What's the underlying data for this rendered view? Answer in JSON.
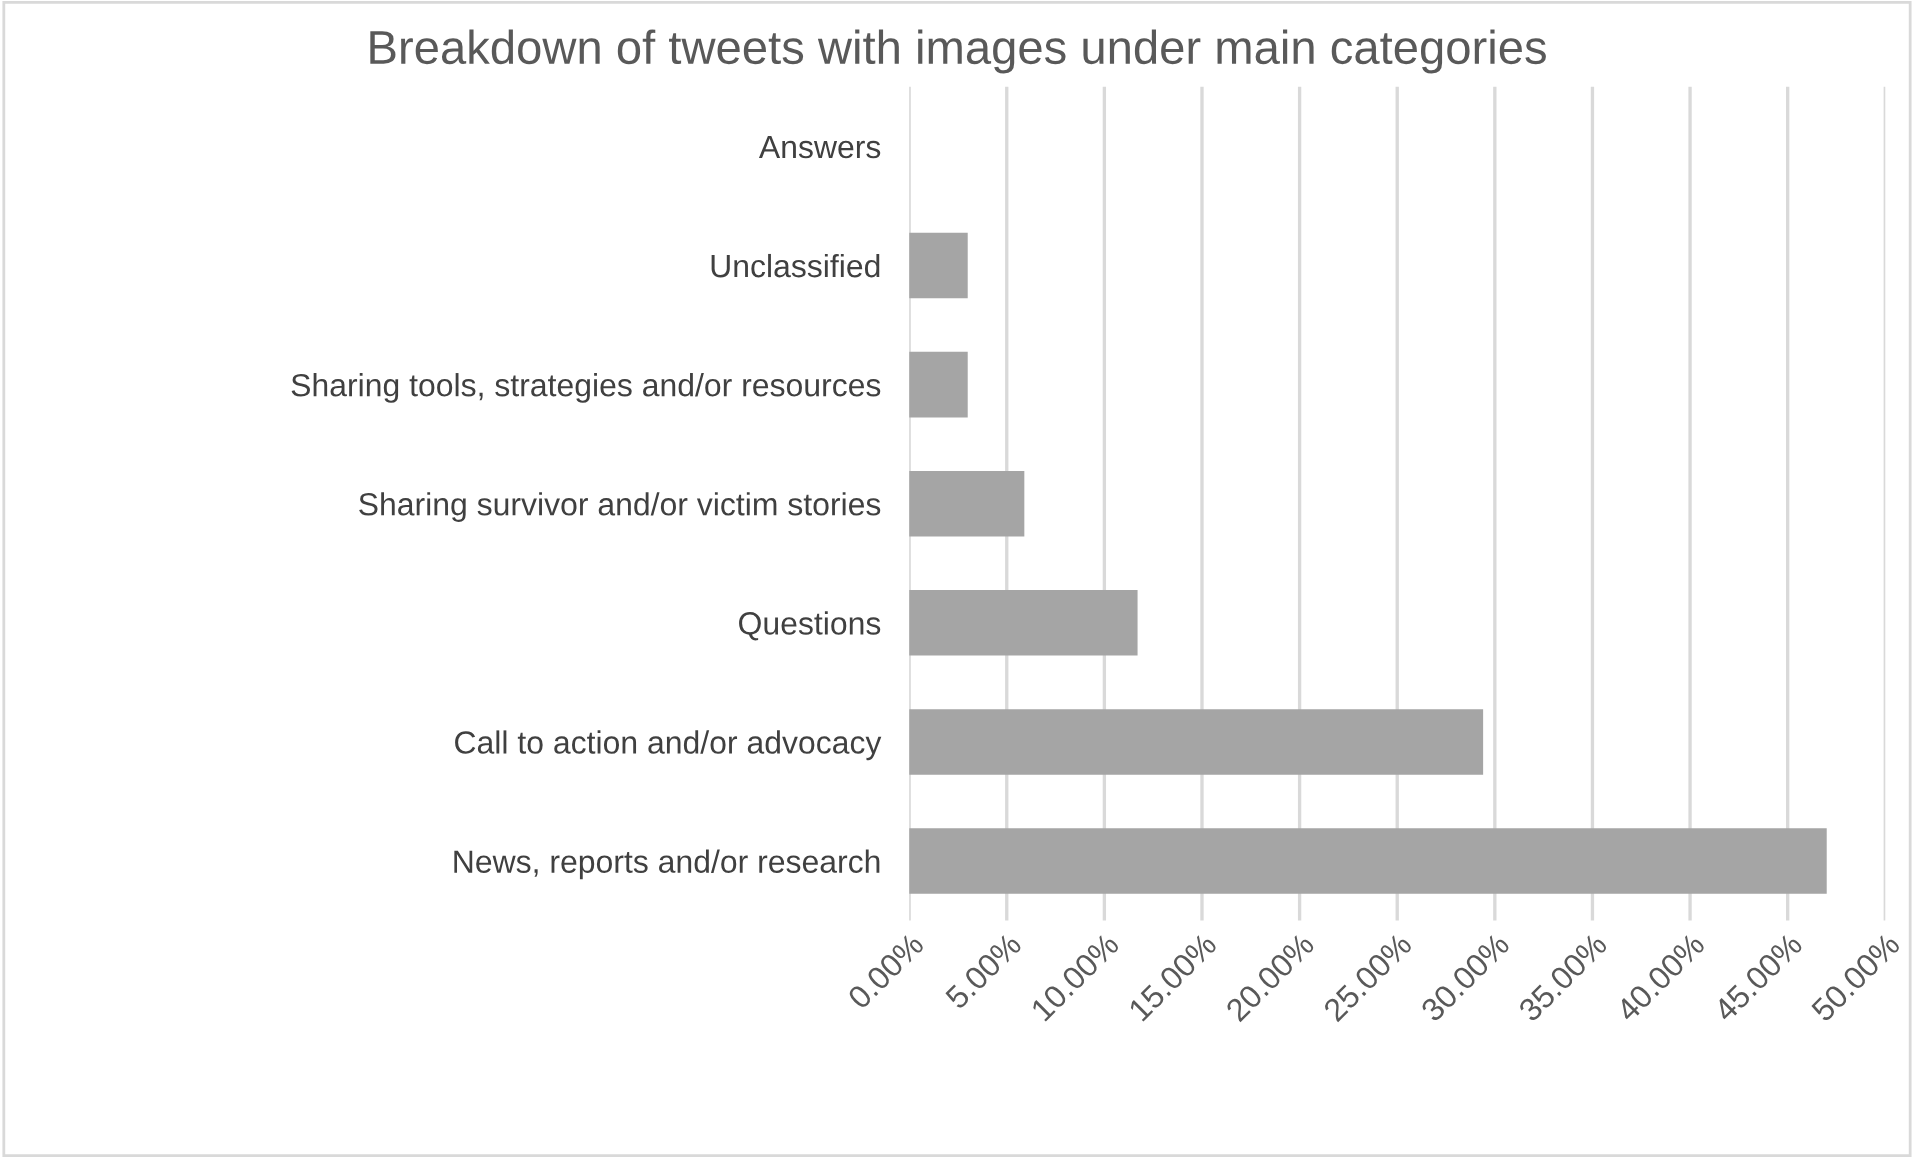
{
  "chart_data": {
    "type": "bar",
    "orientation": "horizontal",
    "title": "Breakdown of tweets with images under main categories",
    "categories": [
      "Answers",
      "Unclassified",
      "Sharing tools, strategies and/or resources",
      "Sharing survivor and/or victim stories",
      "Questions",
      "Call to action and/or advocacy",
      "News, reports and/or research"
    ],
    "values": [
      0,
      3.0,
      3.0,
      5.9,
      11.7,
      29.4,
      47.0
    ],
    "color": "#a5a5a5",
    "xlim": [
      0,
      50
    ],
    "xticks": [
      {
        "value": 0,
        "label": "0.00%"
      },
      {
        "value": 5,
        "label": "5.00%"
      },
      {
        "value": 10,
        "label": "10.00%"
      },
      {
        "value": 15,
        "label": "15.00%"
      },
      {
        "value": 20,
        "label": "20.00%"
      },
      {
        "value": 25,
        "label": "25.00%"
      },
      {
        "value": 30,
        "label": "30.00%"
      },
      {
        "value": 35,
        "label": "35.00%"
      },
      {
        "value": 40,
        "label": "40.00%"
      },
      {
        "value": 45,
        "label": "45.00%"
      },
      {
        "value": 50,
        "label": "50.00%"
      }
    ],
    "grid": "x"
  }
}
